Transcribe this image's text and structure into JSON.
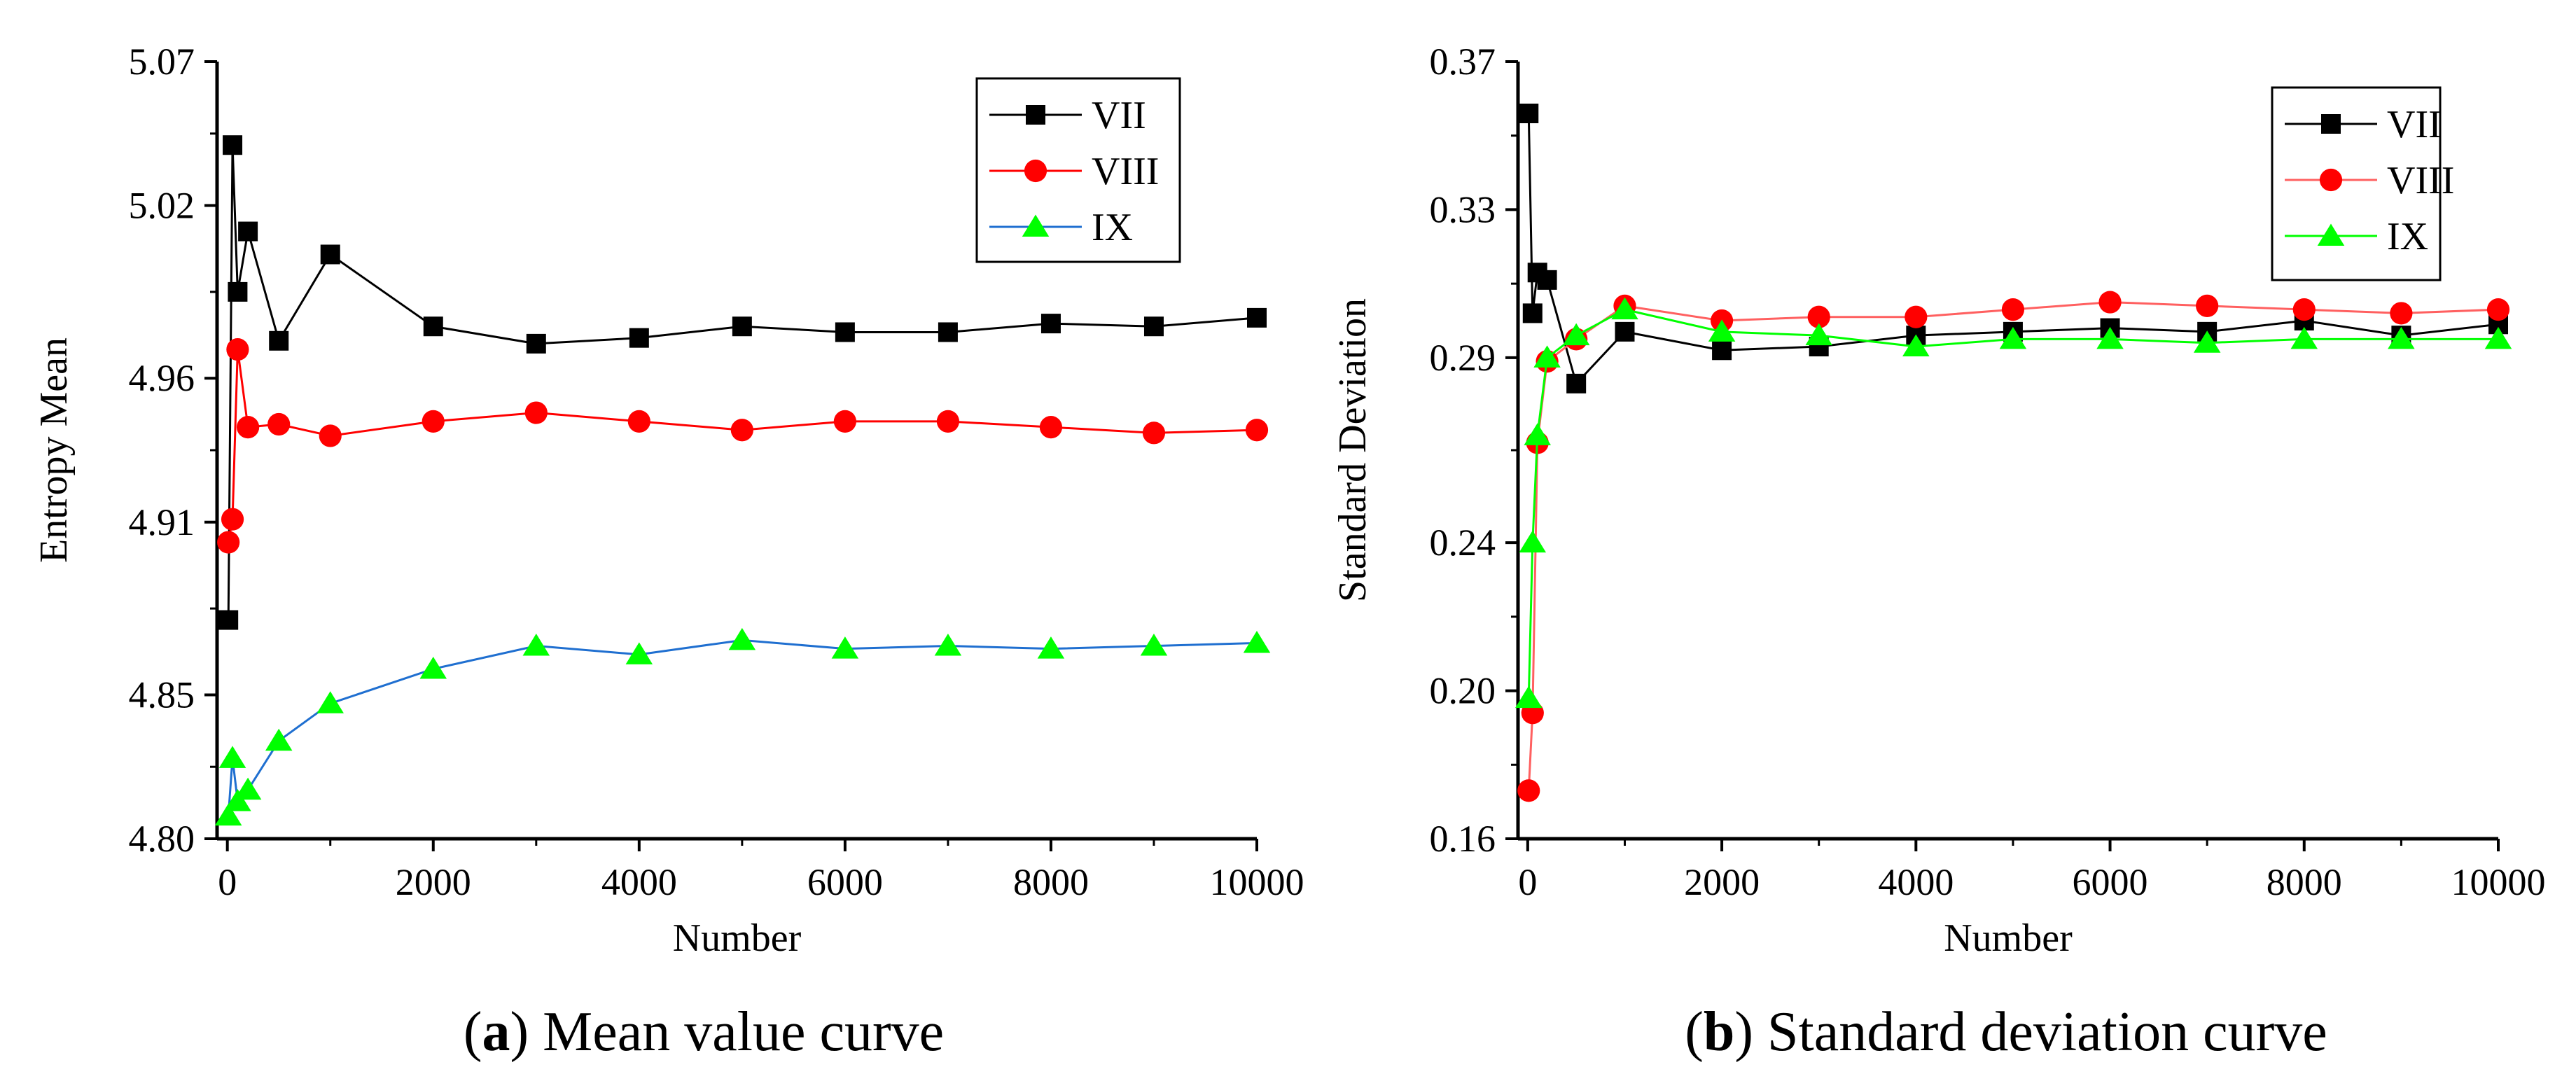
{
  "chart_data": [
    {
      "id": "a",
      "type": "line",
      "xlabel": "Number",
      "ylabel": "Entropy Mean",
      "xlim": [
        -100,
        10000
      ],
      "ylim": [
        4.8,
        5.07
      ],
      "xticks": [
        0,
        2000,
        4000,
        6000,
        8000,
        10000
      ],
      "yticks": [
        4.8,
        4.85,
        4.91,
        4.96,
        5.02,
        5.07
      ],
      "ytick_labels": [
        "4.80",
        "4.85",
        "4.91",
        "4.96",
        "5.02",
        "5.07"
      ],
      "legend_position": "top-right",
      "caption_prefix": "a",
      "caption_text": "Mean value curve",
      "x": [
        10,
        50,
        100,
        200,
        500,
        1000,
        2000,
        3000,
        4000,
        5000,
        6000,
        7000,
        8000,
        9000,
        10000
      ],
      "series": [
        {
          "name": "VII",
          "marker": "square",
          "color": "#000000",
          "line_color": "#000000",
          "values": [
            4.876,
            5.041,
            4.99,
            5.011,
            4.973,
            5.003,
            4.978,
            4.972,
            4.974,
            4.978,
            4.976,
            4.976,
            4.979,
            4.978,
            4.981
          ]
        },
        {
          "name": "VIII",
          "marker": "circle",
          "color": "#ff0000",
          "line_color": "#ff0000",
          "values": [
            4.903,
            4.911,
            4.97,
            4.943,
            4.944,
            4.94,
            4.945,
            4.948,
            4.945,
            4.942,
            4.945,
            4.945,
            4.943,
            4.941,
            4.942
          ]
        },
        {
          "name": "IX",
          "marker": "triangle",
          "color": "#00ff00",
          "line_color": "#1f6fd0",
          "values": [
            4.808,
            4.828,
            4.813,
            4.817,
            4.834,
            4.847,
            4.859,
            4.867,
            4.864,
            4.869,
            4.866,
            4.867,
            4.866,
            4.867,
            4.868
          ]
        }
      ]
    },
    {
      "id": "b",
      "type": "line",
      "xlabel": "Number",
      "ylabel": "Standard Deviation",
      "xlim": [
        -100,
        10000
      ],
      "ylim": [
        0.16,
        0.37
      ],
      "xticks": [
        0,
        2000,
        4000,
        6000,
        8000,
        10000
      ],
      "yticks": [
        0.16,
        0.2,
        0.24,
        0.29,
        0.33,
        0.37
      ],
      "ytick_labels": [
        "0.16",
        "0.20",
        "0.24",
        "0.29",
        "0.33",
        "0.37"
      ],
      "legend_position": "top-right",
      "caption_prefix": "b",
      "caption_text": "Standard deviation curve",
      "x": [
        10,
        50,
        100,
        200,
        500,
        1000,
        2000,
        3000,
        4000,
        5000,
        6000,
        7000,
        8000,
        9000,
        10000
      ],
      "series": [
        {
          "name": "VII",
          "marker": "square",
          "color": "#000000",
          "line_color": "#000000",
          "values": [
            0.356,
            0.302,
            0.313,
            0.311,
            0.283,
            0.297,
            0.292,
            0.293,
            0.296,
            0.297,
            0.298,
            0.297,
            0.3,
            0.296,
            0.299
          ]
        },
        {
          "name": "VIII",
          "marker": "circle",
          "color": "#ff0000",
          "line_color": "#ff6060",
          "values": [
            0.173,
            0.194,
            0.267,
            0.289,
            0.295,
            0.304,
            0.3,
            0.301,
            0.301,
            0.303,
            0.305,
            0.304,
            0.303,
            0.302,
            0.303
          ]
        },
        {
          "name": "IX",
          "marker": "triangle",
          "color": "#00ff00",
          "line_color": "#00ff00",
          "values": [
            0.198,
            0.24,
            0.269,
            0.29,
            0.296,
            0.303,
            0.297,
            0.296,
            0.293,
            0.295,
            0.295,
            0.294,
            0.295,
            0.295,
            0.295
          ]
        }
      ]
    }
  ]
}
